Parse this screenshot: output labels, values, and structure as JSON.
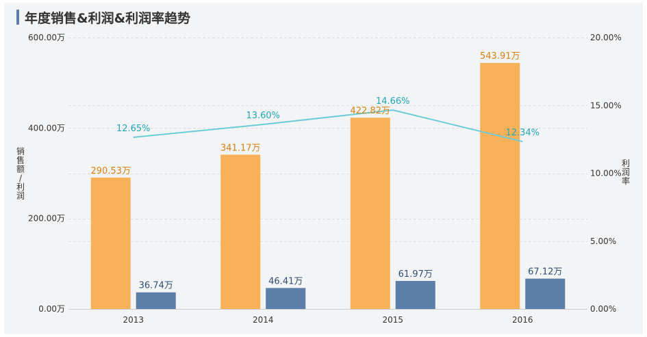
{
  "title": "年度销售&利润&利润率趋势",
  "colors": {
    "sales": "#f8b159",
    "sales_label": "#d98012",
    "profit": "#5b7fa8",
    "profit_label": "#2f4e72",
    "rate": "#6ccbd8",
    "rate_label": "#23a7b8"
  },
  "chart_data": {
    "type": "bar",
    "categories": [
      "2013",
      "2014",
      "2015",
      "2016"
    ],
    "series": [
      {
        "key": "sales",
        "type": "bar",
        "axis": "left",
        "values": [
          290.53,
          341.17,
          422.82,
          543.91
        ],
        "labels": [
          "290.53万",
          "341.17万",
          "422.82万",
          "543.91万"
        ]
      },
      {
        "key": "profit",
        "type": "bar",
        "axis": "left",
        "values": [
          36.74,
          46.41,
          61.97,
          67.12
        ],
        "labels": [
          "36.74万",
          "46.41万",
          "61.97万",
          "67.12万"
        ]
      },
      {
        "key": "rate",
        "type": "line",
        "axis": "right",
        "values": [
          12.65,
          13.6,
          14.66,
          12.34
        ],
        "labels": [
          "12.65%",
          "13.60%",
          "14.66%",
          "12.34%"
        ]
      }
    ],
    "y_left": {
      "label": "销售额/利润",
      "ylim": [
        0,
        600
      ],
      "ticks": [
        0,
        200,
        400,
        600
      ],
      "tick_labels": [
        "0.00万",
        "200.00万",
        "400.00万",
        "600.00万"
      ]
    },
    "y_right": {
      "label": "利润率",
      "ylim": [
        0,
        20
      ],
      "ticks": [
        0,
        5,
        10,
        15,
        20
      ],
      "tick_labels": [
        "0.00%",
        "5.00%",
        "10.00%",
        "15.00%",
        "20.00%"
      ]
    },
    "grid": true
  }
}
